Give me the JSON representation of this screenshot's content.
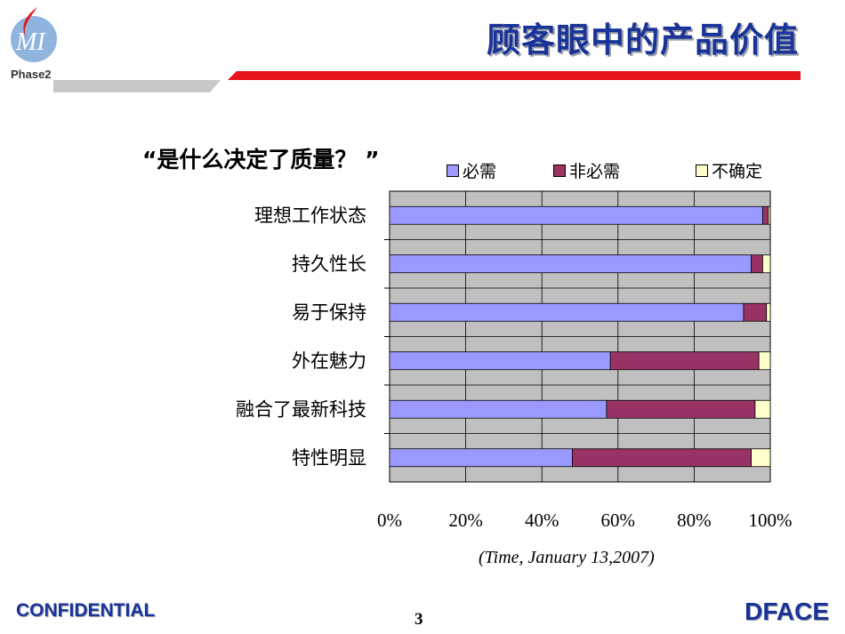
{
  "slide": {
    "title": "顾客眼中的产品价值",
    "logo_text": "Phase2",
    "question": "“是什么决定了质量？ ”",
    "source": "(Time, January 13,2007)",
    "footer_left": "CONFIDENTIAL",
    "page_number": "3",
    "footer_right": "DFACE"
  },
  "colors": {
    "title": "#1a3399",
    "header_red": "#e8141b",
    "header_gray": "#c8c8c8",
    "plot_background": "#c0c0c0"
  },
  "chart_data": {
    "type": "bar",
    "orientation": "horizontal",
    "stacked": true,
    "percent_stacked": true,
    "categories": [
      "理想工作状态",
      "持久性长",
      "易于保持",
      "外在魅力",
      "融合了最新科技",
      "特性明显"
    ],
    "series": [
      {
        "name": "必需",
        "color": "#9999ff",
        "values": [
          98,
          95,
          93,
          58,
          57,
          48
        ]
      },
      {
        "name": "非必需",
        "color": "#993366",
        "values": [
          1.5,
          3,
          6,
          39,
          39,
          47
        ]
      },
      {
        "name": "不确定",
        "color": "#ffffcc",
        "values": [
          0.5,
          2,
          1,
          3,
          4,
          5
        ]
      }
    ],
    "x_ticks": [
      "0%",
      "20%",
      "40%",
      "60%",
      "80%",
      "100%"
    ],
    "xlim": [
      0,
      100
    ],
    "grid": true,
    "legend": "top"
  }
}
